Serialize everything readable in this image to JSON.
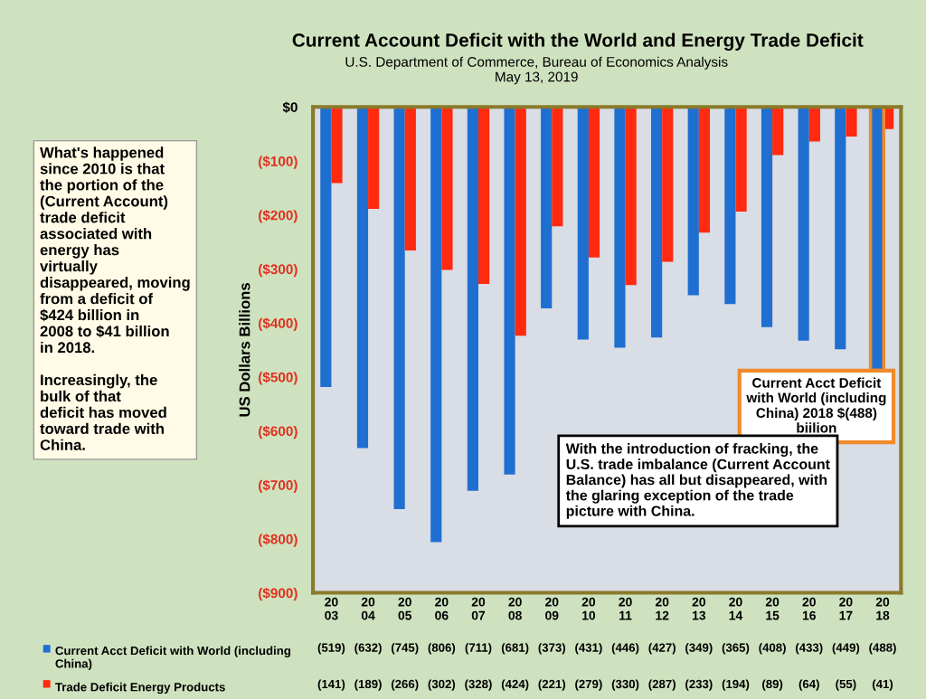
{
  "chart_data": {
    "type": "bar",
    "title": "Current Account Deficit with the World and Energy Trade Deficit",
    "subtitle": "U.S. Department of Commerce, Bureau of Economics Analysis\nMay 13, 2019",
    "ylabel": "US Dollars Billions",
    "categories": [
      "20\n03",
      "20\n04",
      "20\n05",
      "20\n06",
      "20\n07",
      "20\n08",
      "20\n09",
      "20\n10",
      "20\n11",
      "20\n12",
      "20\n13",
      "20\n14",
      "20\n15",
      "20\n16",
      "20\n17",
      "20\n18"
    ],
    "series": [
      {
        "name": "Current Acct Deficit with World (including China)",
        "color": "#1f6fd1",
        "values": [
          -519,
          -632,
          -745,
          -806,
          -711,
          -681,
          -373,
          -431,
          -446,
          -427,
          -349,
          -365,
          -408,
          -433,
          -449,
          -488
        ],
        "value_labels": [
          "(519)",
          "(632)",
          "(745)",
          "(806)",
          "(711)",
          "(681)",
          "(373)",
          "(431)",
          "(446)",
          "(427)",
          "(349)",
          "(365)",
          "(408)",
          "(433)",
          "(449)",
          "(488)"
        ]
      },
      {
        "name": "Trade Deficit Energy Products",
        "color": "#ff2a0f",
        "values": [
          -141,
          -189,
          -266,
          -302,
          -328,
          -424,
          -221,
          -279,
          -330,
          -287,
          -233,
          -194,
          -89,
          -64,
          -55,
          -41
        ],
        "value_labels": [
          "(141)",
          "(189)",
          "(266)",
          "(302)",
          "(328)",
          "(424)",
          "(221)",
          "(279)",
          "(330)",
          "(287)",
          "(233)",
          "(194)",
          "(89)",
          "(64)",
          "(55)",
          "(41)"
        ]
      }
    ],
    "ylim": [
      -900,
      0
    ],
    "yticks": [
      {
        "value": 0,
        "label": "$0"
      },
      {
        "value": -100,
        "label": "($100)"
      },
      {
        "value": -200,
        "label": "($200)"
      },
      {
        "value": -300,
        "label": "($300)"
      },
      {
        "value": -400,
        "label": "($400)"
      },
      {
        "value": -500,
        "label": "($500)"
      },
      {
        "value": -600,
        "label": "($600)"
      },
      {
        "value": -700,
        "label": "($700)"
      },
      {
        "value": -800,
        "label": "($800)"
      },
      {
        "value": -900,
        "label": "($900)"
      }
    ],
    "annotations": [
      "What's happened since 2010 is that the portion of the (Current Account) trade deficit associated with energy has virtually disappeared, moving from a deficit of $424 billion in 2008 to $41 billion in 2018.\n\nIncreasingly, the bulk of that deficit has moved toward trade with China.",
      {
        "text": "Current Acct Deficit with World (including China) 2018 $(488) biilion",
        "x": "20\n18",
        "y": -488
      },
      "With the introduction of fracking, the U.S. trade imbalance (Current Account Balance) has all but disappeared, with the glaring exception of the trade picture with China."
    ],
    "legend": "bottom",
    "grid": false
  }
}
